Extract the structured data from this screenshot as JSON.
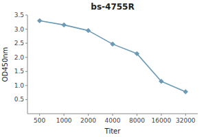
{
  "chart_data": {
    "type": "line",
    "title": "bs-4755R",
    "x_label": "Titer",
    "y_label": "OD450nm",
    "categories": [
      "500",
      "1000",
      "2000",
      "4000",
      "8000",
      "16000",
      "32000"
    ],
    "values": [
      3.3,
      3.15,
      2.95,
      2.47,
      2.13,
      1.15,
      0.78
    ],
    "color": "#6a9ab5",
    "marker": "diamond",
    "ylim": [
      0,
      3.5
    ],
    "yticks": [
      0.5,
      {
        "value": 1,
        "label": "1.0"
      },
      1.5,
      {
        "value": 2,
        "label": "2.0"
      },
      2.5,
      {
        "value": 3,
        "label": "3.0"
      },
      3.5
    ],
    "grid": false
  }
}
